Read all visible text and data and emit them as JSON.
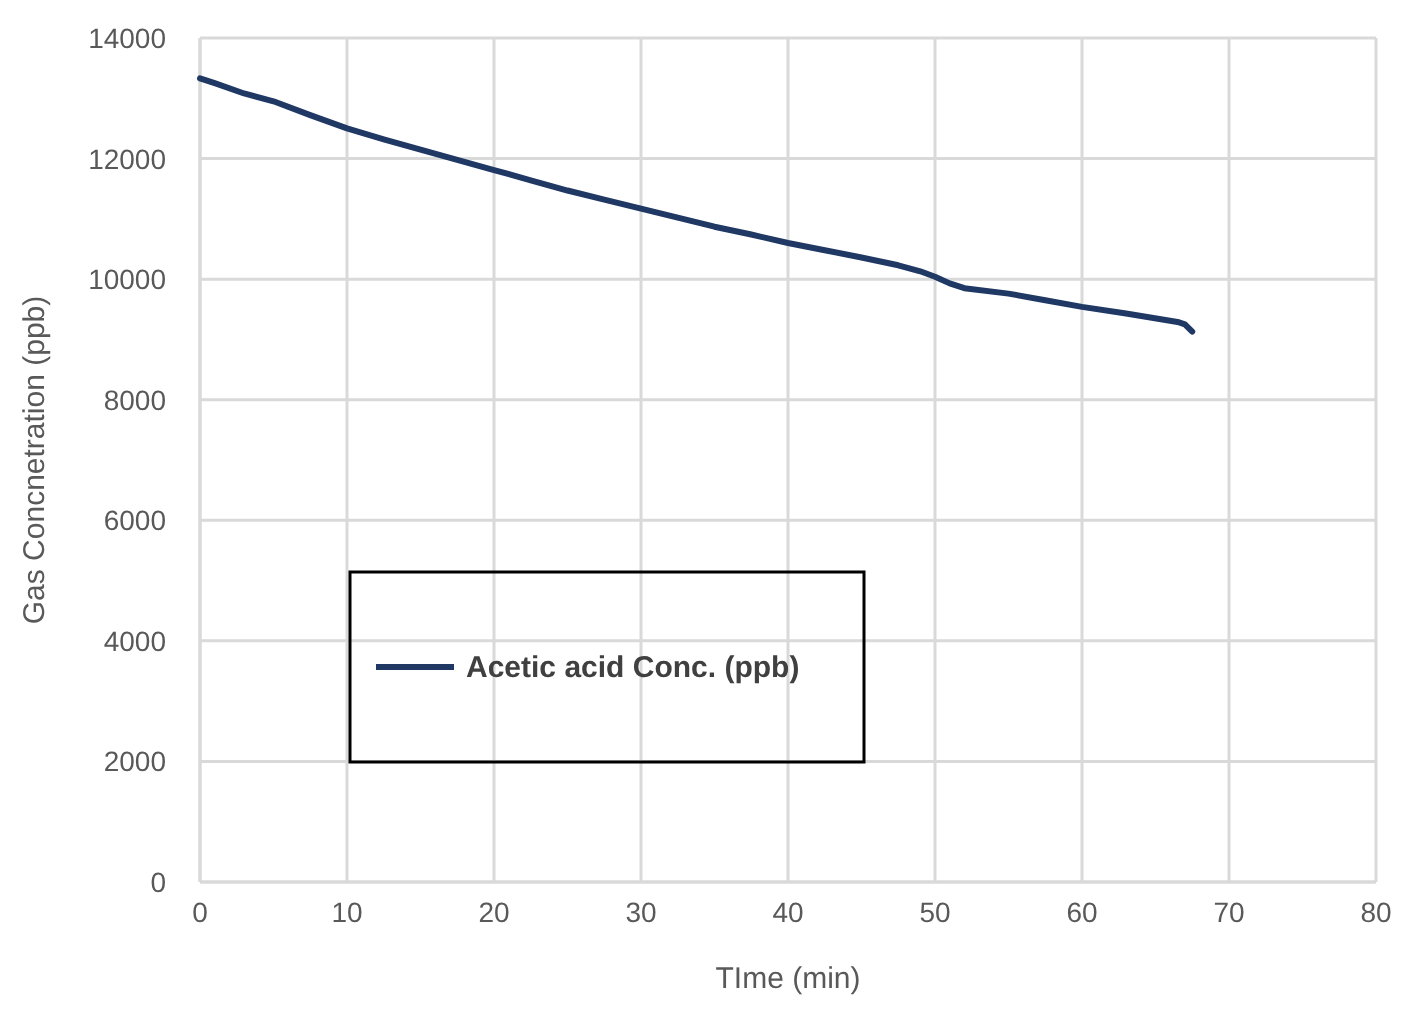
{
  "chart_data": {
    "type": "line",
    "xlabel": "TIme (min)",
    "ylabel": "Gas Concnetration (ppb)",
    "xlim": [
      0,
      80
    ],
    "xticks": [
      0,
      10,
      20,
      30,
      40,
      50,
      60,
      70,
      80
    ],
    "ylim": [
      0,
      14000
    ],
    "yticks": [
      0,
      2000,
      4000,
      6000,
      8000,
      10000,
      12000,
      14000
    ],
    "grid": true,
    "legend": "bottom left",
    "line_style": "solid",
    "series": [
      {
        "name": "Acetic acid Conc. (ppb)",
        "color": "#203864",
        "x": [
          0,
          1,
          3,
          5,
          7.5,
          10,
          12.5,
          15,
          17.5,
          20,
          22.5,
          25,
          27.5,
          30,
          32.5,
          35,
          37.5,
          40,
          42.5,
          45,
          47.5,
          49,
          50,
          51,
          52,
          55,
          57.5,
          60,
          63,
          66.5,
          67,
          67.5
        ],
        "values": [
          13330,
          13250,
          13080,
          12950,
          12720,
          12500,
          12320,
          12150,
          11980,
          11810,
          11640,
          11470,
          11320,
          11170,
          11020,
          10870,
          10740,
          10600,
          10480,
          10360,
          10230,
          10130,
          10040,
          9930,
          9850,
          9760,
          9650,
          9540,
          9430,
          9290,
          9250,
          9130
        ]
      }
    ]
  }
}
